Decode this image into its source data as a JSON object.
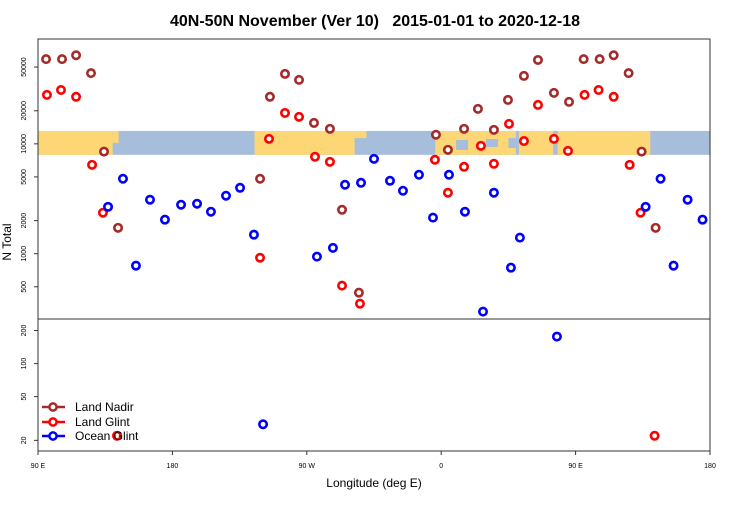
{
  "chart_data": {
    "type": "scatter",
    "title": "40N-50N November (Ver 10)   2015-01-01 to 2020-12-18",
    "xlabel": "Longitude (deg E)",
    "ylabel": "N Total",
    "x_ticks": [
      {
        "lon": 90,
        "label": "90 E"
      },
      {
        "lon": 180,
        "label": "180"
      },
      {
        "lon": -90,
        "label": "90 W"
      },
      {
        "lon": 0,
        "label": "0"
      },
      {
        "lon": 90,
        "label": "90 E",
        "wrapped": true
      },
      {
        "lon": 180,
        "label": "180",
        "wrapped": true
      }
    ],
    "xlim": [
      "90 E",
      "180 (after one full wrap)"
    ],
    "y_scale": "log",
    "ylim": [
      16,
      90000
    ],
    "y_break": 250,
    "y_ticks_upper": [
      "500",
      "1000",
      "2000",
      "5000",
      "10000",
      "20000",
      "50000"
    ],
    "y_ticks_lower": [
      "20",
      "50",
      "100",
      "200"
    ],
    "grid": false,
    "legend_placement": "bottom-left",
    "map_strip": {
      "description_range": [
        7940,
        13100
      ],
      "land_color": "#FDD776",
      "ocean_color": "#A6BDDB"
    },
    "series": [
      {
        "name": "Land Nadir",
        "color": "#A52A2A",
        "points": [
          [
            95.4,
            59000
          ],
          [
            106.1,
            59000
          ],
          [
            115.5,
            64000
          ],
          [
            125.5,
            44000
          ],
          [
            134.2,
            8500
          ],
          [
            143.6,
            1720
          ],
          [
            -121.3,
            4810
          ],
          [
            -114.7,
            26800
          ],
          [
            -104.6,
            43300
          ],
          [
            -95.2,
            38200
          ],
          [
            -85.2,
            15500
          ],
          [
            -74.5,
            13700
          ],
          [
            -66.4,
            2510
          ],
          [
            -55.1,
            442
          ],
          [
            -3.5,
            12100
          ],
          [
            4.5,
            8820
          ],
          [
            15.3,
            13700
          ],
          [
            24.6,
            20800
          ],
          [
            35.3,
            13400
          ],
          [
            44.7,
            25100
          ],
          [
            55.4,
            41500
          ],
          [
            64.8,
            58000
          ],
          [
            75.5,
            29100
          ],
          [
            85.6,
            24100
          ]
        ]
      },
      {
        "name": "Land Glint",
        "color": "#FF0000",
        "points": [
          [
            96.0,
            27900
          ],
          [
            105.4,
            30900
          ],
          [
            115.5,
            26800
          ],
          [
            126.2,
            6440
          ],
          [
            133.5,
            2360
          ],
          [
            142.9,
            22
          ],
          [
            -121.3,
            919
          ],
          [
            -115.3,
            11100
          ],
          [
            -104.6,
            19100
          ],
          [
            -95.2,
            17600
          ],
          [
            -84.5,
            7620
          ],
          [
            -74.5,
            6860
          ],
          [
            -66.4,
            512
          ],
          [
            -54.4,
            351
          ],
          [
            -4.2,
            7160
          ],
          [
            4.5,
            3590
          ],
          [
            15.3,
            6180
          ],
          [
            26.6,
            9590
          ],
          [
            35.3,
            6580
          ],
          [
            45.4,
            15200
          ],
          [
            55.4,
            10600
          ],
          [
            64.8,
            22600
          ],
          [
            75.5,
            11100
          ],
          [
            84.9,
            8630
          ]
        ]
      },
      {
        "name": "Ocean Glint",
        "color": "#0000FF",
        "points": [
          [
            136.9,
            2670
          ],
          [
            146.9,
            4810
          ],
          [
            155.6,
            778
          ],
          [
            165.0,
            3100
          ],
          [
            175.0,
            2040
          ],
          [
            -174.2,
            2790
          ],
          [
            -163.5,
            2850
          ],
          [
            -154.2,
            2410
          ],
          [
            -144.1,
            3370
          ],
          [
            -134.7,
            3980
          ],
          [
            -125.4,
            1490
          ],
          [
            -119.3,
            28
          ],
          [
            -83.2,
            940
          ],
          [
            -72.5,
            1130
          ],
          [
            -64.4,
            4240
          ],
          [
            -53.7,
            4420
          ],
          [
            -45.0,
            7300
          ],
          [
            -34.3,
            4610
          ],
          [
            -25.6,
            3740
          ],
          [
            -14.9,
            5230
          ],
          [
            -5.5,
            2130
          ],
          [
            5.2,
            5230
          ],
          [
            15.9,
            2410
          ],
          [
            28.0,
            297
          ],
          [
            35.3,
            3590
          ],
          [
            46.7,
            746
          ],
          [
            52.7,
            1400
          ],
          [
            77.5,
            176
          ]
        ]
      }
    ]
  }
}
